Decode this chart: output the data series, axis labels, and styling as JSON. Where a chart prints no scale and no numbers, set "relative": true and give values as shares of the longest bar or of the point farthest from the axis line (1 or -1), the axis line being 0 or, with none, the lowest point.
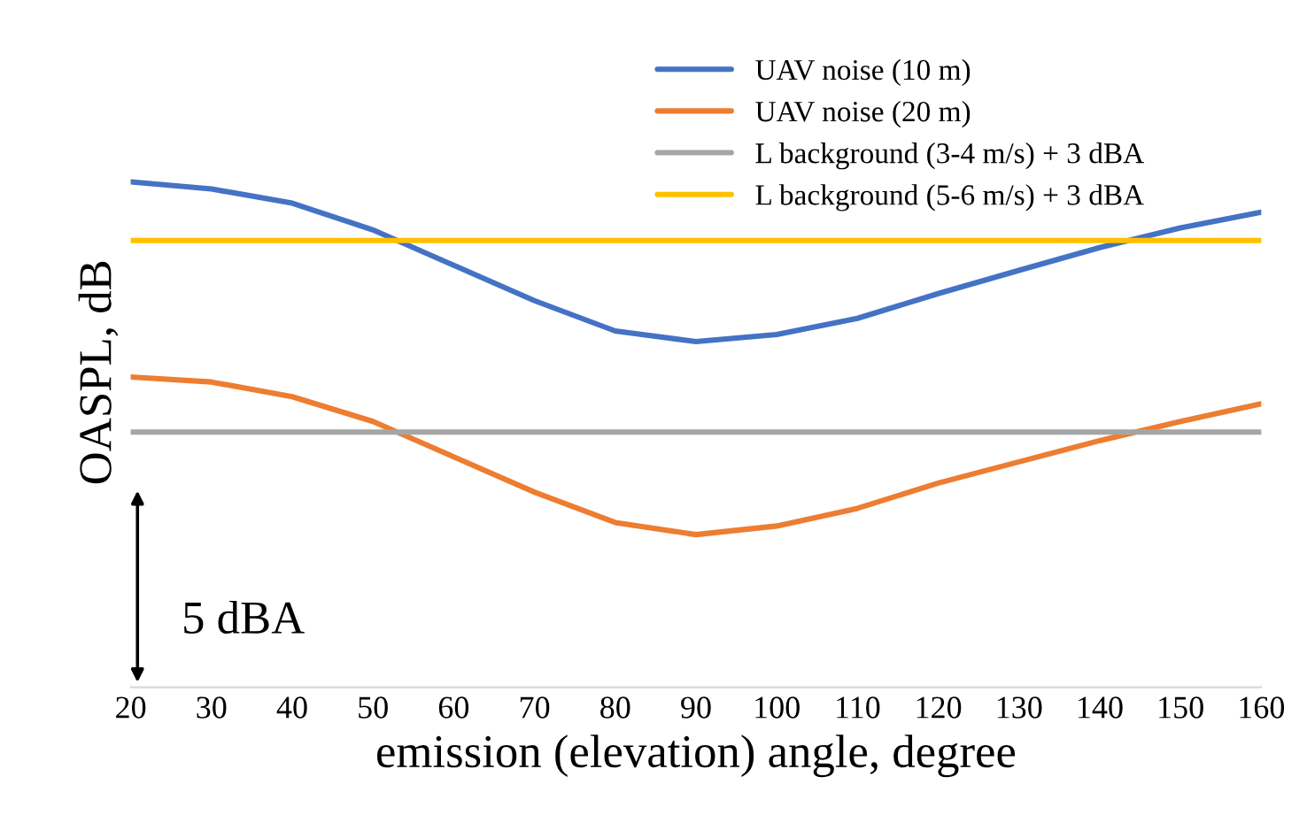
{
  "chart_data": {
    "type": "line",
    "relative": true,
    "xlabel": "emission (elevation) angle, degree",
    "ylabel": "OASPL, dB",
    "x": [
      20,
      30,
      40,
      50,
      60,
      70,
      80,
      90,
      100,
      110,
      120,
      130,
      140,
      150,
      160
    ],
    "xlim": [
      20,
      160
    ],
    "xticks": [
      20,
      30,
      40,
      50,
      60,
      70,
      80,
      90,
      100,
      110,
      120,
      130,
      140,
      150,
      160
    ],
    "series": [
      {
        "name": "UAV noise (10 m)",
        "color": "#4472c4",
        "values": [
          1,
          0.986,
          0.958,
          0.905,
          0.835,
          0.765,
          0.705,
          0.684,
          0.698,
          0.73,
          0.779,
          0.825,
          0.87,
          0.909,
          0.94
        ]
      },
      {
        "name": "UAV noise (20 m)",
        "color": "#ed7d31",
        "values": [
          0.614,
          0.604,
          0.575,
          0.526,
          0.456,
          0.386,
          0.326,
          0.302,
          0.319,
          0.354,
          0.404,
          0.446,
          0.488,
          0.526,
          0.561
        ]
      },
      {
        "name": "L background (3-4 m/s) + 3 dBA",
        "color": "#a5a5a5",
        "values": [
          0.505,
          0.505,
          0.505,
          0.505,
          0.505,
          0.505,
          0.505,
          0.505,
          0.505,
          0.505,
          0.505,
          0.505,
          0.505,
          0.505,
          0.505
        ]
      },
      {
        "name": "L background (5-6 m/s) + 3 dBA",
        "color": "#ffc000",
        "values": [
          0.884,
          0.884,
          0.884,
          0.884,
          0.884,
          0.884,
          0.884,
          0.884,
          0.884,
          0.884,
          0.884,
          0.884,
          0.884,
          0.884,
          0.884
        ]
      }
    ],
    "legend": "top right",
    "annotations": [
      "5 dBA"
    ]
  }
}
